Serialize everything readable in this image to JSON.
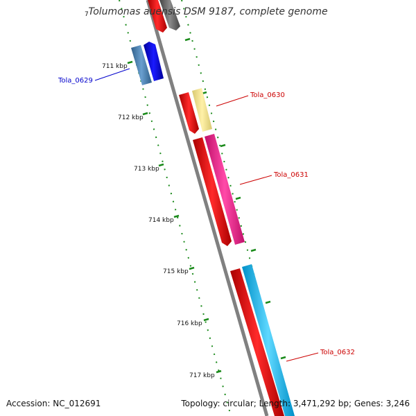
{
  "title": "Tolumonas auensis DSM 9187, complete genome",
  "footer": {
    "accession": "Accession: NC_012691",
    "info": "Topology: circular; Length: 3,471,292 bp; Genes: 3,246"
  },
  "scale": {
    "ticks": [
      {
        "label": "711 kbp",
        "kbp": 711
      },
      {
        "label": "712 kbp",
        "kbp": 712
      },
      {
        "label": "713 kbp",
        "kbp": 713
      },
      {
        "label": "714 kbp",
        "kbp": 714
      },
      {
        "label": "715 kbp",
        "kbp": 715
      },
      {
        "label": "716 kbp",
        "kbp": 716
      },
      {
        "label": "717 kbp",
        "kbp": 717
      }
    ]
  },
  "genes": [
    {
      "label": "Tola_0629",
      "color": "#0000cc"
    },
    {
      "label": "Tola_0630",
      "color": "#cc0000"
    },
    {
      "label": "Tola_0631",
      "color": "#cc0000"
    },
    {
      "label": "Tola_0632",
      "color": "#cc0000"
    }
  ],
  "colors": {
    "backbone": "#808080",
    "cds": "#ff0000",
    "blue": "#0000ee",
    "steelblue": "#4682b4",
    "khaki": "#f0e68c",
    "pink": "#ff1493",
    "cyan": "#00bfff",
    "grey": "#666666",
    "ticks": "#1a8a1a"
  }
}
